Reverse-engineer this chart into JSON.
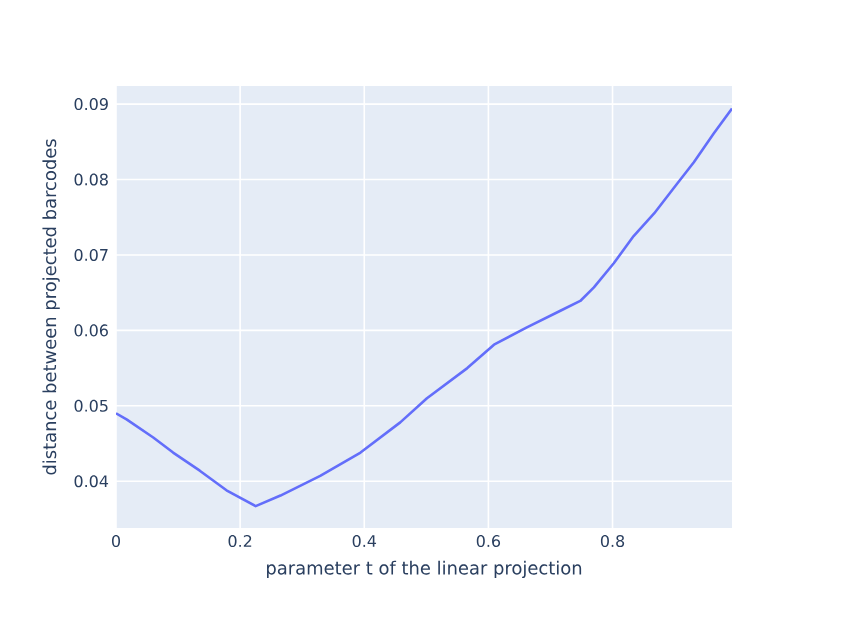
{
  "chart_data": {
    "type": "line",
    "xlabel": "parameter t of the linear projection",
    "ylabel": "distance between projected barcodes",
    "xlim": [
      0,
      0.9925
    ],
    "ylim": [
      0.0338,
      0.0924
    ],
    "xticks": [
      0,
      0.2,
      0.4,
      0.6,
      0.8
    ],
    "yticks": [
      0.04,
      0.05,
      0.06,
      0.07,
      0.08,
      0.09
    ],
    "grid": true,
    "series": [
      {
        "color": "#636efa",
        "x": [
          0,
          0.017,
          0.06,
          0.092,
          0.135,
          0.178,
          0.225,
          0.265,
          0.329,
          0.394,
          0.458,
          0.501,
          0.566,
          0.609,
          0.662,
          0.716,
          0.748,
          0.77,
          0.802,
          0.834,
          0.867,
          0.899,
          0.931,
          0.963,
          0.9925
        ],
        "values": [
          0.049,
          0.0482,
          0.0458,
          0.0438,
          0.0414,
          0.0388,
          0.0367,
          0.0381,
          0.0407,
          0.0438,
          0.0478,
          0.051,
          0.055,
          0.0581,
          0.0604,
          0.0626,
          0.0639,
          0.0657,
          0.0689,
          0.0725,
          0.0755,
          0.0789,
          0.0823,
          0.0861,
          0.0894
        ]
      }
    ]
  }
}
